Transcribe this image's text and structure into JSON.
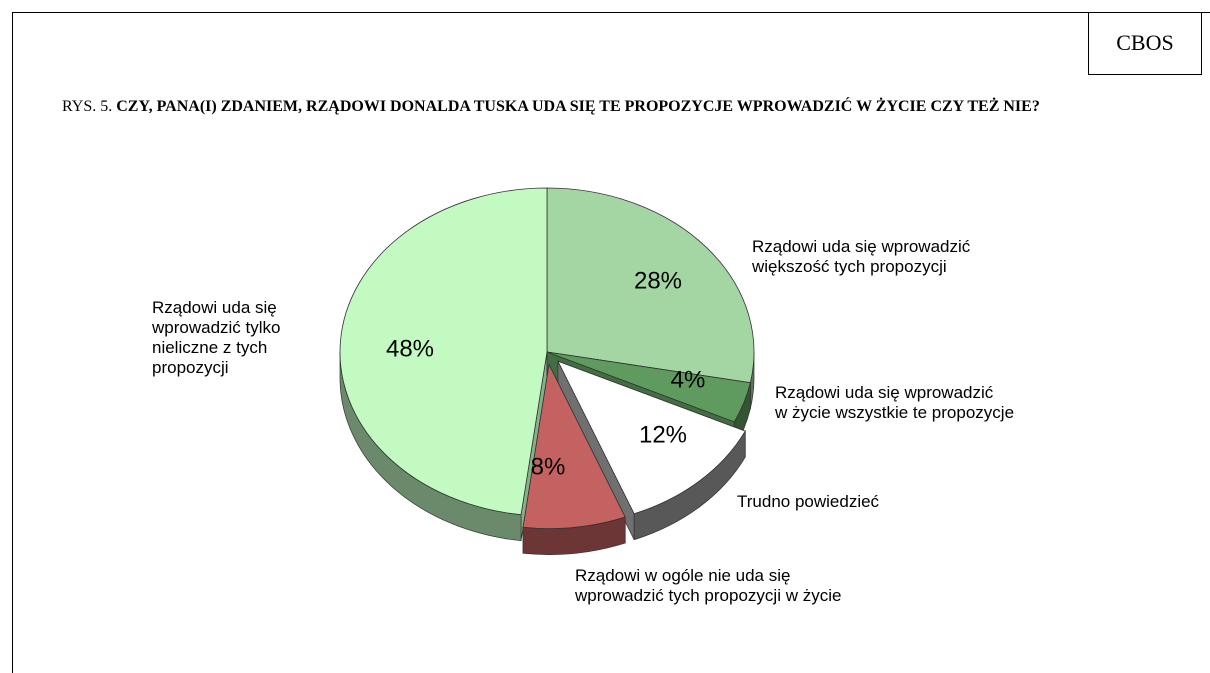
{
  "badge": "CBOS",
  "chart_data": {
    "type": "pie",
    "title_prefix": "RYS. 5.",
    "title": "CZY, PANA(I) ZDANIEM, RZĄDOWI DONALDA TUSKA UDA SIĘ TE PROPOZYCJE WPROWADZIĆ W ŻYCIE CZY TEŻ NIE?",
    "categories": [
      "Rządowi uda się wprowadzić\nwiększość tych propozycji",
      "Rządowi uda się wprowadzić\nw życie wszystkie te propozycje",
      "Trudno powiedzieć",
      "Rządowi w ogóle nie uda się\nwprowadzić tych propozycji w życie",
      "Rządowi uda się\nwprowadzić tylko\nnieliczne z tych\npropozycji"
    ],
    "values": [
      28,
      4,
      12,
      8,
      48
    ],
    "value_labels": [
      "28%",
      "4%",
      "12%",
      "8%",
      "48%"
    ],
    "colors": [
      "#a3d6a3",
      "#5f9b5f",
      "#ffffff",
      "#c46262",
      "#c2fac2"
    ],
    "exploded": [
      false,
      false,
      true,
      true,
      false
    ]
  }
}
